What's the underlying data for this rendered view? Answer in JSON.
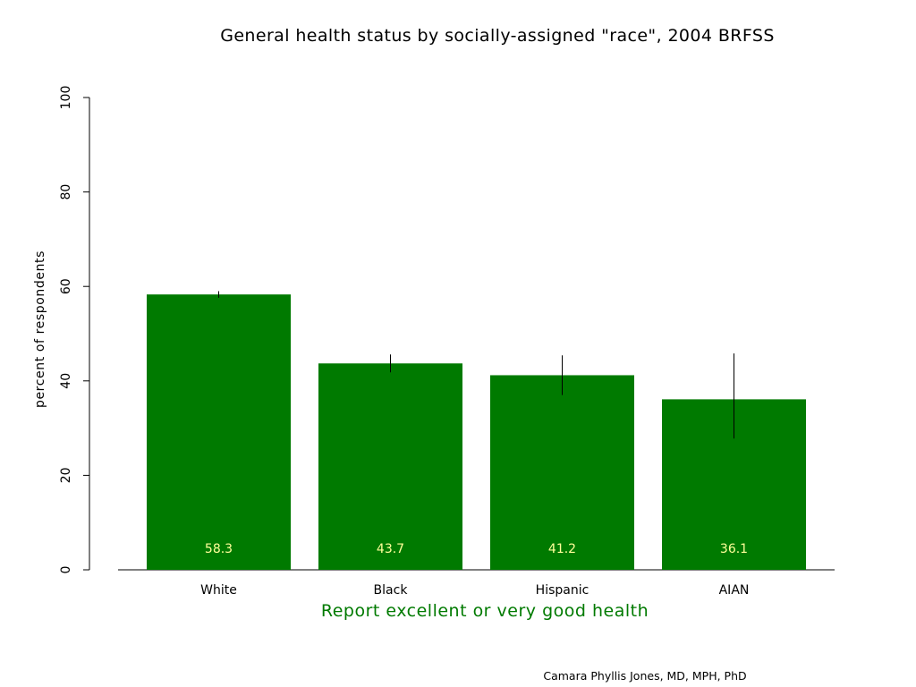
{
  "chart_data": {
    "type": "bar",
    "title": "General health status by socially-assigned \"race\", 2004 BRFSS",
    "xlabel": "Report excellent or very good health",
    "ylabel": "percent of respondents",
    "categories": [
      "White",
      "Black",
      "Hispanic",
      "AIAN"
    ],
    "values": [
      58.3,
      43.7,
      41.2,
      36.1
    ],
    "value_labels": [
      "58.3",
      "43.7",
      "41.2",
      "36.1"
    ],
    "error_bars": [
      {
        "low": 57.6,
        "high": 59.0
      },
      {
        "low": 41.8,
        "high": 45.6
      },
      {
        "low": 37.0,
        "high": 45.4
      },
      {
        "low": 27.8,
        "high": 45.8
      }
    ],
    "ylim": [
      0,
      100
    ],
    "yticks": [
      0,
      20,
      40,
      60,
      80,
      100
    ],
    "ytick_labels": [
      "0",
      "20",
      "40",
      "60",
      "80",
      "100"
    ],
    "grid": false,
    "legend": "none",
    "colors": {
      "bar": "#007a00",
      "value_label": "#ffff99",
      "xlabel": "#007a00",
      "axis": "#000000",
      "error_bar": "#000000"
    }
  },
  "credit": "Camara Phyllis Jones, MD, MPH, PhD"
}
